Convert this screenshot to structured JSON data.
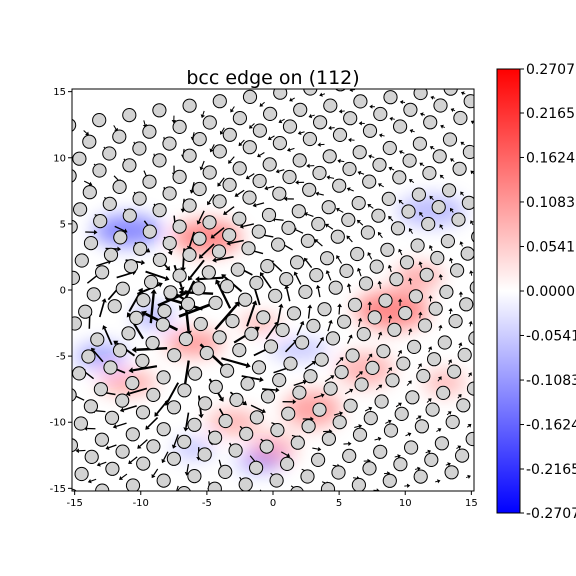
{
  "chart_data": [
    {
      "type": "scatter",
      "title": "bcc edge on (112)",
      "xlabel": "",
      "ylabel": "",
      "xlim": [
        -15.2,
        15.2
      ],
      "ylim": [
        -15.2,
        15.2
      ],
      "x_ticks": [
        -15,
        -10,
        -5,
        0,
        5,
        10,
        15
      ],
      "y_ticks": [
        15,
        10,
        5,
        0,
        -5,
        -10,
        -15
      ],
      "x_tick_labels": [
        "-15",
        "-10",
        "-5",
        "0",
        "5",
        "10",
        "15"
      ],
      "y_tick_labels": [
        "15",
        "10",
        "5",
        "0",
        "-5",
        "-10",
        "-15"
      ],
      "grid": false,
      "layers": [
        "strain field (pcolormesh, bwr)",
        "differential displacement arrows (quiver)",
        "atoms (circles)"
      ],
      "dislocation_core_center": [
        -7.5,
        -2.0
      ],
      "atom_marker": {
        "face": "#d3d3d3",
        "edge": "#000000"
      },
      "arrow_color": "#000000"
    },
    {
      "type": "heatmap",
      "colormap": "bwr",
      "colorbar_range": [
        -0.27,
        0.27
      ],
      "colorbar_tick_labels": [
        "0.2707",
        "0.2165",
        "0.1624",
        "0.1083",
        "0.0541",
        "0.0000",
        "-0.0541",
        "-0.1083",
        "-0.1624",
        "-0.2165",
        "-0.2707"
      ],
      "colorbar_tick_values": [
        0.2707,
        0.2165,
        0.1624,
        0.1083,
        0.0541,
        0.0,
        -0.0541,
        -0.1083,
        -0.1624,
        -0.2165,
        -0.2707
      ],
      "colors": {
        "max": "#ff0000",
        "mid": "#ffffff",
        "min": "#0000ff"
      }
    }
  ]
}
